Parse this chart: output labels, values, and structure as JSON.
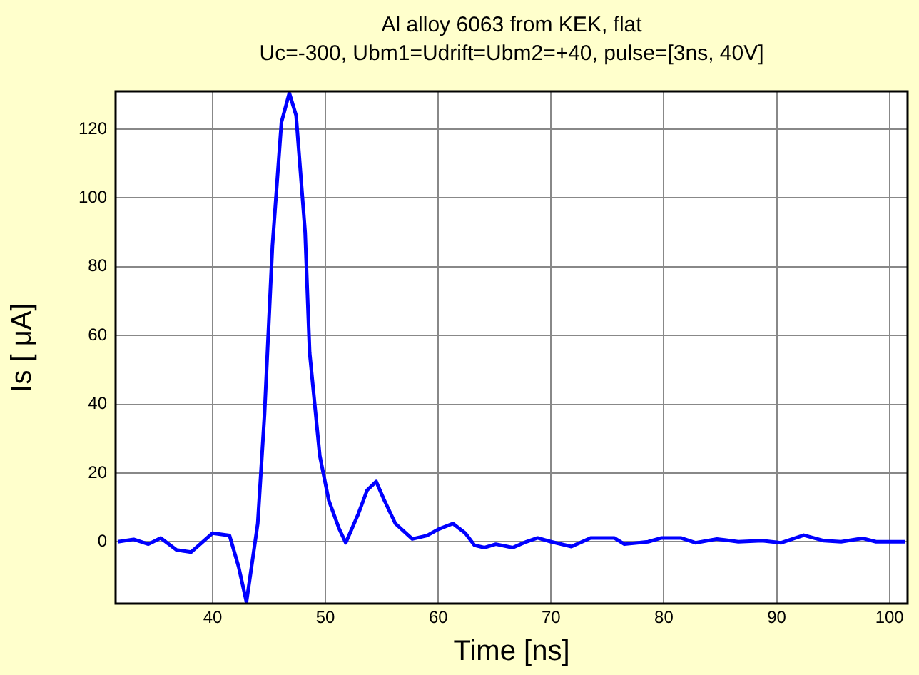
{
  "chart_data": {
    "type": "line",
    "title": "Al alloy 6063 from KEK, flat",
    "subtitle": "Uc=-300, Ubm1=Udrift=Ubm2=+40, pulse=[3ns, 40V]",
    "xlabel": "Time [ns]",
    "ylabel": "Is [ μA]",
    "x": [
      31.6,
      33.0,
      34.3,
      35.4,
      36.8,
      38.1,
      40.0,
      41.5,
      42.3,
      43.0,
      44.0,
      44.6,
      45.3,
      46.1,
      46.8,
      47.4,
      48.2,
      48.6,
      49.5,
      50.3,
      51.2,
      51.8,
      52.9,
      53.7,
      54.5,
      55.2,
      56.2,
      57.7,
      59.0,
      60.0,
      61.3,
      62.4,
      63.2,
      64.1,
      65.1,
      66.6,
      67.8,
      68.8,
      70.0,
      71.8,
      73.5,
      75.6,
      76.5,
      78.6,
      79.8,
      81.5,
      82.8,
      84.7,
      86.6,
      88.7,
      90.4,
      92.4,
      94.2,
      95.7,
      97.6,
      98.8,
      101.4
    ],
    "series": [
      {
        "color": "#0000ff",
        "values": [
          0,
          0.7,
          -0.7,
          1.1,
          -2.4,
          -3.0,
          2.5,
          1.8,
          -7.2,
          -17.5,
          5.3,
          37,
          86,
          122,
          130.5,
          124,
          90,
          55,
          25,
          12,
          3.9,
          -0.3,
          8,
          15,
          17.5,
          12.2,
          5.3,
          0.8,
          1.8,
          3.6,
          5.3,
          2.5,
          -1,
          -1.7,
          -0.7,
          -1.7,
          0,
          1.1,
          0,
          -1.4,
          1.1,
          1.1,
          -0.7,
          0,
          1.1,
          1.1,
          -0.3,
          0.8,
          0,
          0.3,
          -0.3,
          1.9,
          0.3,
          0,
          1,
          0,
          0
        ]
      }
    ],
    "xlim": [
      31.4,
      101.6
    ],
    "ylim": [
      -18,
      131
    ],
    "xticks": [
      40,
      50,
      60,
      70,
      80,
      90,
      100
    ],
    "yticks": [
      0,
      20,
      40,
      60,
      80,
      100,
      120
    ],
    "grid": true,
    "legend": false,
    "marker": "none",
    "line_style": "solid"
  }
}
